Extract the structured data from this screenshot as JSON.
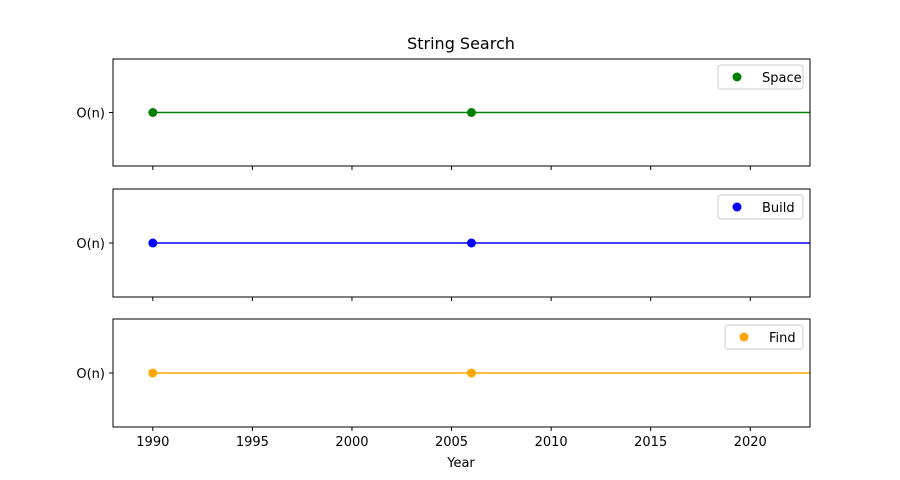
{
  "chart_data": {
    "type": "line",
    "title": "String Search",
    "xlabel": "Year",
    "xlim": [
      1988,
      2023
    ],
    "xticks": [
      1990,
      1995,
      2000,
      2005,
      2010,
      2015,
      2020
    ],
    "series": [
      {
        "name": "Space",
        "color": "#008000",
        "ytick_label": "O(n)",
        "x": [
          1990,
          2006
        ],
        "extends_to_axis_end": true,
        "legend_position": "upper right"
      },
      {
        "name": "Build",
        "color": "#0000ff",
        "ytick_label": "O(n)",
        "x": [
          1990,
          2006
        ],
        "extends_to_axis_end": true,
        "legend_position": "upper right"
      },
      {
        "name": "Find",
        "color": "#ffa500",
        "ytick_label": "O(n)",
        "x": [
          1990,
          2006
        ],
        "extends_to_axis_end": true,
        "legend_position": "upper right"
      }
    ],
    "grid": false,
    "shared_x_axis": true
  }
}
